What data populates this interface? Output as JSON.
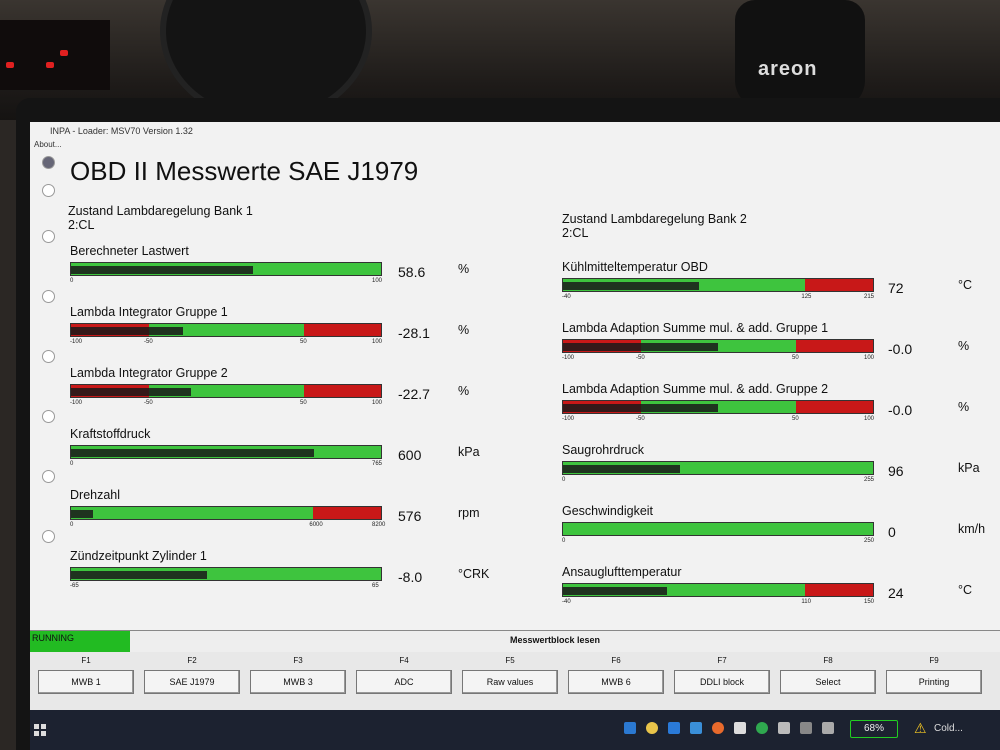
{
  "window": {
    "title": "INPA - Loader: MSV70 Version 1.32",
    "menu": "About..."
  },
  "heading": "OBD II Messwerte SAE J1979",
  "left_status": {
    "title": "Zustand Lambdaregelung Bank 1",
    "value": "2:CL"
  },
  "right_status": {
    "title": "Zustand Lambdaregelung Bank 2",
    "value": "2:CL"
  },
  "gauges_left": [
    {
      "label": "Berechneter Lastwert",
      "value": "58.6",
      "unit": "%",
      "ticks": [
        "0",
        "100"
      ],
      "fill": 0.586,
      "colors": [
        "#3ec43e"
      ]
    },
    {
      "label": "Lambda Integrator Gruppe 1",
      "value": "-28.1",
      "unit": "%",
      "ticks": [
        "-100",
        "-50",
        "50",
        "100"
      ],
      "fill": 0.36,
      "colors": [
        "#c81818",
        "#3ec43e",
        "#3ec43e",
        "#c81818"
      ]
    },
    {
      "label": "Lambda Integrator Gruppe 2",
      "value": "-22.7",
      "unit": "%",
      "ticks": [
        "-100",
        "-50",
        "50",
        "100"
      ],
      "fill": 0.386,
      "colors": [
        "#c81818",
        "#3ec43e",
        "#3ec43e",
        "#c81818"
      ]
    },
    {
      "label": "Kraftstoffdruck",
      "value": "600",
      "unit": "kPa",
      "ticks": [
        "0",
        "765"
      ],
      "fill": 0.784,
      "colors": [
        "#3ec43e"
      ]
    },
    {
      "label": "Drehzahl",
      "value": "576",
      "unit": "rpm",
      "ticks": [
        "0",
        "6000",
        "8200"
      ],
      "fill": 0.07,
      "colors": [
        "#3ec43e",
        "#c81818"
      ]
    },
    {
      "label": "Zündzeitpunkt Zylinder 1",
      "value": "-8.0",
      "unit": "°CRK",
      "ticks": [
        "-65",
        "65"
      ],
      "fill": 0.438,
      "colors": [
        "#3ec43e"
      ]
    }
  ],
  "gauges_right": [
    {
      "label": "Kühlmitteltemperatur OBD",
      "value": "72",
      "unit": "°C",
      "ticks": [
        "-40",
        "125",
        "215"
      ],
      "fill": 0.439,
      "colors": [
        "#3ec43e",
        "#c81818"
      ]
    },
    {
      "label": "Lambda Adaption Summe mul. & add. Gruppe 1",
      "value": "-0.0",
      "unit": "%",
      "ticks": [
        "-100",
        "-50",
        "50",
        "100"
      ],
      "fill": 0.5,
      "colors": [
        "#c81818",
        "#3ec43e",
        "#3ec43e",
        "#c81818"
      ]
    },
    {
      "label": "Lambda Adaption Summe mul. & add. Gruppe 2",
      "value": "-0.0",
      "unit": "%",
      "ticks": [
        "-100",
        "-50",
        "50",
        "100"
      ],
      "fill": 0.5,
      "colors": [
        "#c81818",
        "#3ec43e",
        "#3ec43e",
        "#c81818"
      ]
    },
    {
      "label": "Saugrohrdruck",
      "value": "96",
      "unit": "kPa",
      "ticks": [
        "0",
        "255"
      ],
      "fill": 0.376,
      "colors": [
        "#3ec43e"
      ]
    },
    {
      "label": "Geschwindigkeit",
      "value": "0",
      "unit": "km/h",
      "ticks": [
        "0",
        "250"
      ],
      "fill": 0.0,
      "colors": [
        "#3ec43e"
      ]
    },
    {
      "label": "Ansauglufttemperatur",
      "value": "24",
      "unit": "°C",
      "ticks": [
        "-40",
        "110",
        "150"
      ],
      "fill": 0.337,
      "colors": [
        "#3ec43e",
        "#c81818"
      ]
    }
  ],
  "status_bar": {
    "running": "RUNNING",
    "block": "Messwertblock lesen"
  },
  "fkeys": [
    {
      "key": "F1",
      "label": "MWB 1"
    },
    {
      "key": "F2",
      "label": "SAE J1979"
    },
    {
      "key": "F3",
      "label": "MWB 3"
    },
    {
      "key": "F4",
      "label": "ADC"
    },
    {
      "key": "F5",
      "label": "Raw values"
    },
    {
      "key": "F6",
      "label": "MWB 6"
    },
    {
      "key": "F7",
      "label": "DDLI block"
    },
    {
      "key": "F8",
      "label": "Select"
    },
    {
      "key": "F9",
      "label": "Printing"
    }
  ],
  "taskbar": {
    "battery": "68%",
    "weather": "Cold..."
  },
  "scene": {
    "bottle_brand": "areon"
  }
}
